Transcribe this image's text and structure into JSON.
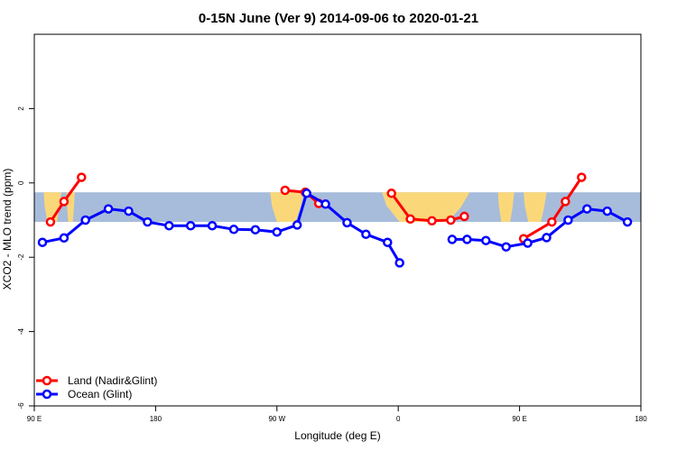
{
  "chart_data": {
    "type": "line",
    "title": "0-15N June (Ver 9)   2014-09-06 to 2020-01-21",
    "xlabel": "Longitude (deg E)",
    "ylabel": "XCO2 - MLO trend (ppm)",
    "xlim": [
      90,
      540
    ],
    "ylim": [
      -6,
      4
    ],
    "x_ticks": [
      {
        "value": 90,
        "label": "90 E"
      },
      {
        "value": 180,
        "label": "180"
      },
      {
        "value": 270,
        "label": "90 W"
      },
      {
        "value": 360,
        "label": "0"
      },
      {
        "value": 450,
        "label": "90 E"
      },
      {
        "value": 540,
        "label": "180"
      }
    ],
    "y_ticks": [
      {
        "value": -6,
        "label": "-6"
      },
      {
        "value": -4,
        "label": "-4"
      },
      {
        "value": -2,
        "label": "-2"
      },
      {
        "value": 0,
        "label": "0"
      },
      {
        "value": 2,
        "label": "2"
      }
    ],
    "map_band": {
      "y_top": -0.25,
      "y_bottom": -1.05,
      "ocean_color": "#A7BCDB",
      "land_color": "#FAD87A",
      "land_regions": [
        [
          97,
          110
        ],
        [
          114,
          120
        ],
        [
          265,
          290
        ],
        [
          348,
          413
        ],
        [
          434,
          446
        ],
        [
          453,
          470
        ]
      ]
    },
    "series": [
      {
        "name": "Land (Nadir&Glint)",
        "color": "#FF0000",
        "segments": [
          [
            [
              102,
              -1.05
            ],
            [
              112,
              -0.5
            ],
            [
              125,
              0.15
            ]
          ],
          [
            [
              276,
              -0.2
            ],
            [
              291,
              -0.25
            ],
            [
              301,
              -0.55
            ]
          ],
          [
            [
              355,
              -0.28
            ],
            [
              369,
              -0.97
            ],
            [
              385,
              -1.02
            ],
            [
              399,
              -1.0
            ],
            [
              409,
              -0.9
            ]
          ],
          [
            [
              453,
              -1.5
            ],
            [
              474,
              -1.05
            ],
            [
              484,
              -0.5
            ],
            [
              496,
              0.15
            ]
          ]
        ]
      },
      {
        "name": "Ocean (Glint)",
        "color": "#0000FF",
        "segments": [
          [
            [
              96,
              -1.6
            ],
            [
              112,
              -1.48
            ],
            [
              128,
              -1.0
            ],
            [
              145,
              -0.7
            ],
            [
              160,
              -0.76
            ],
            [
              174,
              -1.05
            ],
            [
              190,
              -1.15
            ],
            [
              206,
              -1.15
            ],
            [
              222,
              -1.15
            ],
            [
              238,
              -1.25
            ],
            [
              254,
              -1.26
            ],
            [
              270,
              -1.32
            ],
            [
              285,
              -1.13
            ],
            [
              292,
              -0.28
            ],
            [
              306,
              -0.57
            ],
            [
              322,
              -1.07
            ],
            [
              336,
              -1.38
            ],
            [
              352,
              -1.6
            ],
            [
              361,
              -2.15
            ]
          ],
          [
            [
              400,
              -1.52
            ],
            [
              411,
              -1.52
            ],
            [
              425,
              -1.55
            ],
            [
              440,
              -1.72
            ],
            [
              456,
              -1.62
            ],
            [
              470,
              -1.47
            ],
            [
              486,
              -1.0
            ],
            [
              500,
              -0.7
            ],
            [
              515,
              -0.76
            ],
            [
              530,
              -1.05
            ]
          ]
        ]
      }
    ],
    "legend": {
      "position": "bottom-left",
      "entries": [
        "Land (Nadir&Glint)",
        "Ocean (Glint)"
      ]
    }
  }
}
